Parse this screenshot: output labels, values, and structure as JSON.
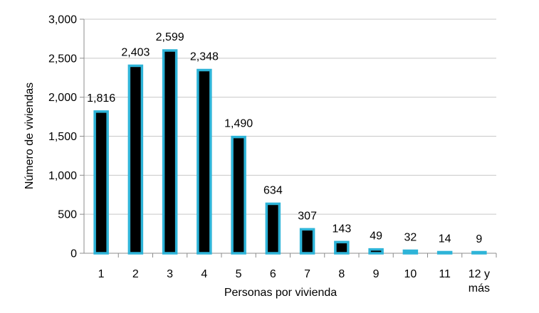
{
  "chart_data": {
    "type": "bar",
    "title": "",
    "xlabel": "Personas por vivienda",
    "ylabel": "Número de viviendas",
    "categories": [
      "1",
      "2",
      "3",
      "4",
      "5",
      "6",
      "7",
      "8",
      "9",
      "10",
      "11",
      "12 y más"
    ],
    "category_label_lines": [
      [
        "1"
      ],
      [
        "2"
      ],
      [
        "3"
      ],
      [
        "4"
      ],
      [
        "5"
      ],
      [
        "6"
      ],
      [
        "7"
      ],
      [
        "8"
      ],
      [
        "9"
      ],
      [
        "10"
      ],
      [
        "11"
      ],
      [
        "12 y",
        "más"
      ]
    ],
    "values": [
      1816,
      2403,
      2599,
      2348,
      1490,
      634,
      307,
      143,
      49,
      32,
      14,
      9
    ],
    "data_labels": [
      "1,816",
      "2,403",
      "2,599",
      "2,348",
      "1,490",
      "634",
      "307",
      "143",
      "49",
      "32",
      "14",
      "9"
    ],
    "ylim": [
      0,
      3000
    ],
    "yticks": [
      0,
      500,
      1000,
      1500,
      2000,
      2500,
      3000
    ],
    "ytick_labels": [
      "0",
      "500",
      "1,000",
      "1,500",
      "2,000",
      "2,500",
      "3,000"
    ],
    "grid": "horizontal",
    "legend": "none",
    "colors": {
      "bar_fill": "#000000",
      "bar_border": "#2eb4d8",
      "grid": "#c8c8c8",
      "axis": "#8c8c8c"
    }
  }
}
